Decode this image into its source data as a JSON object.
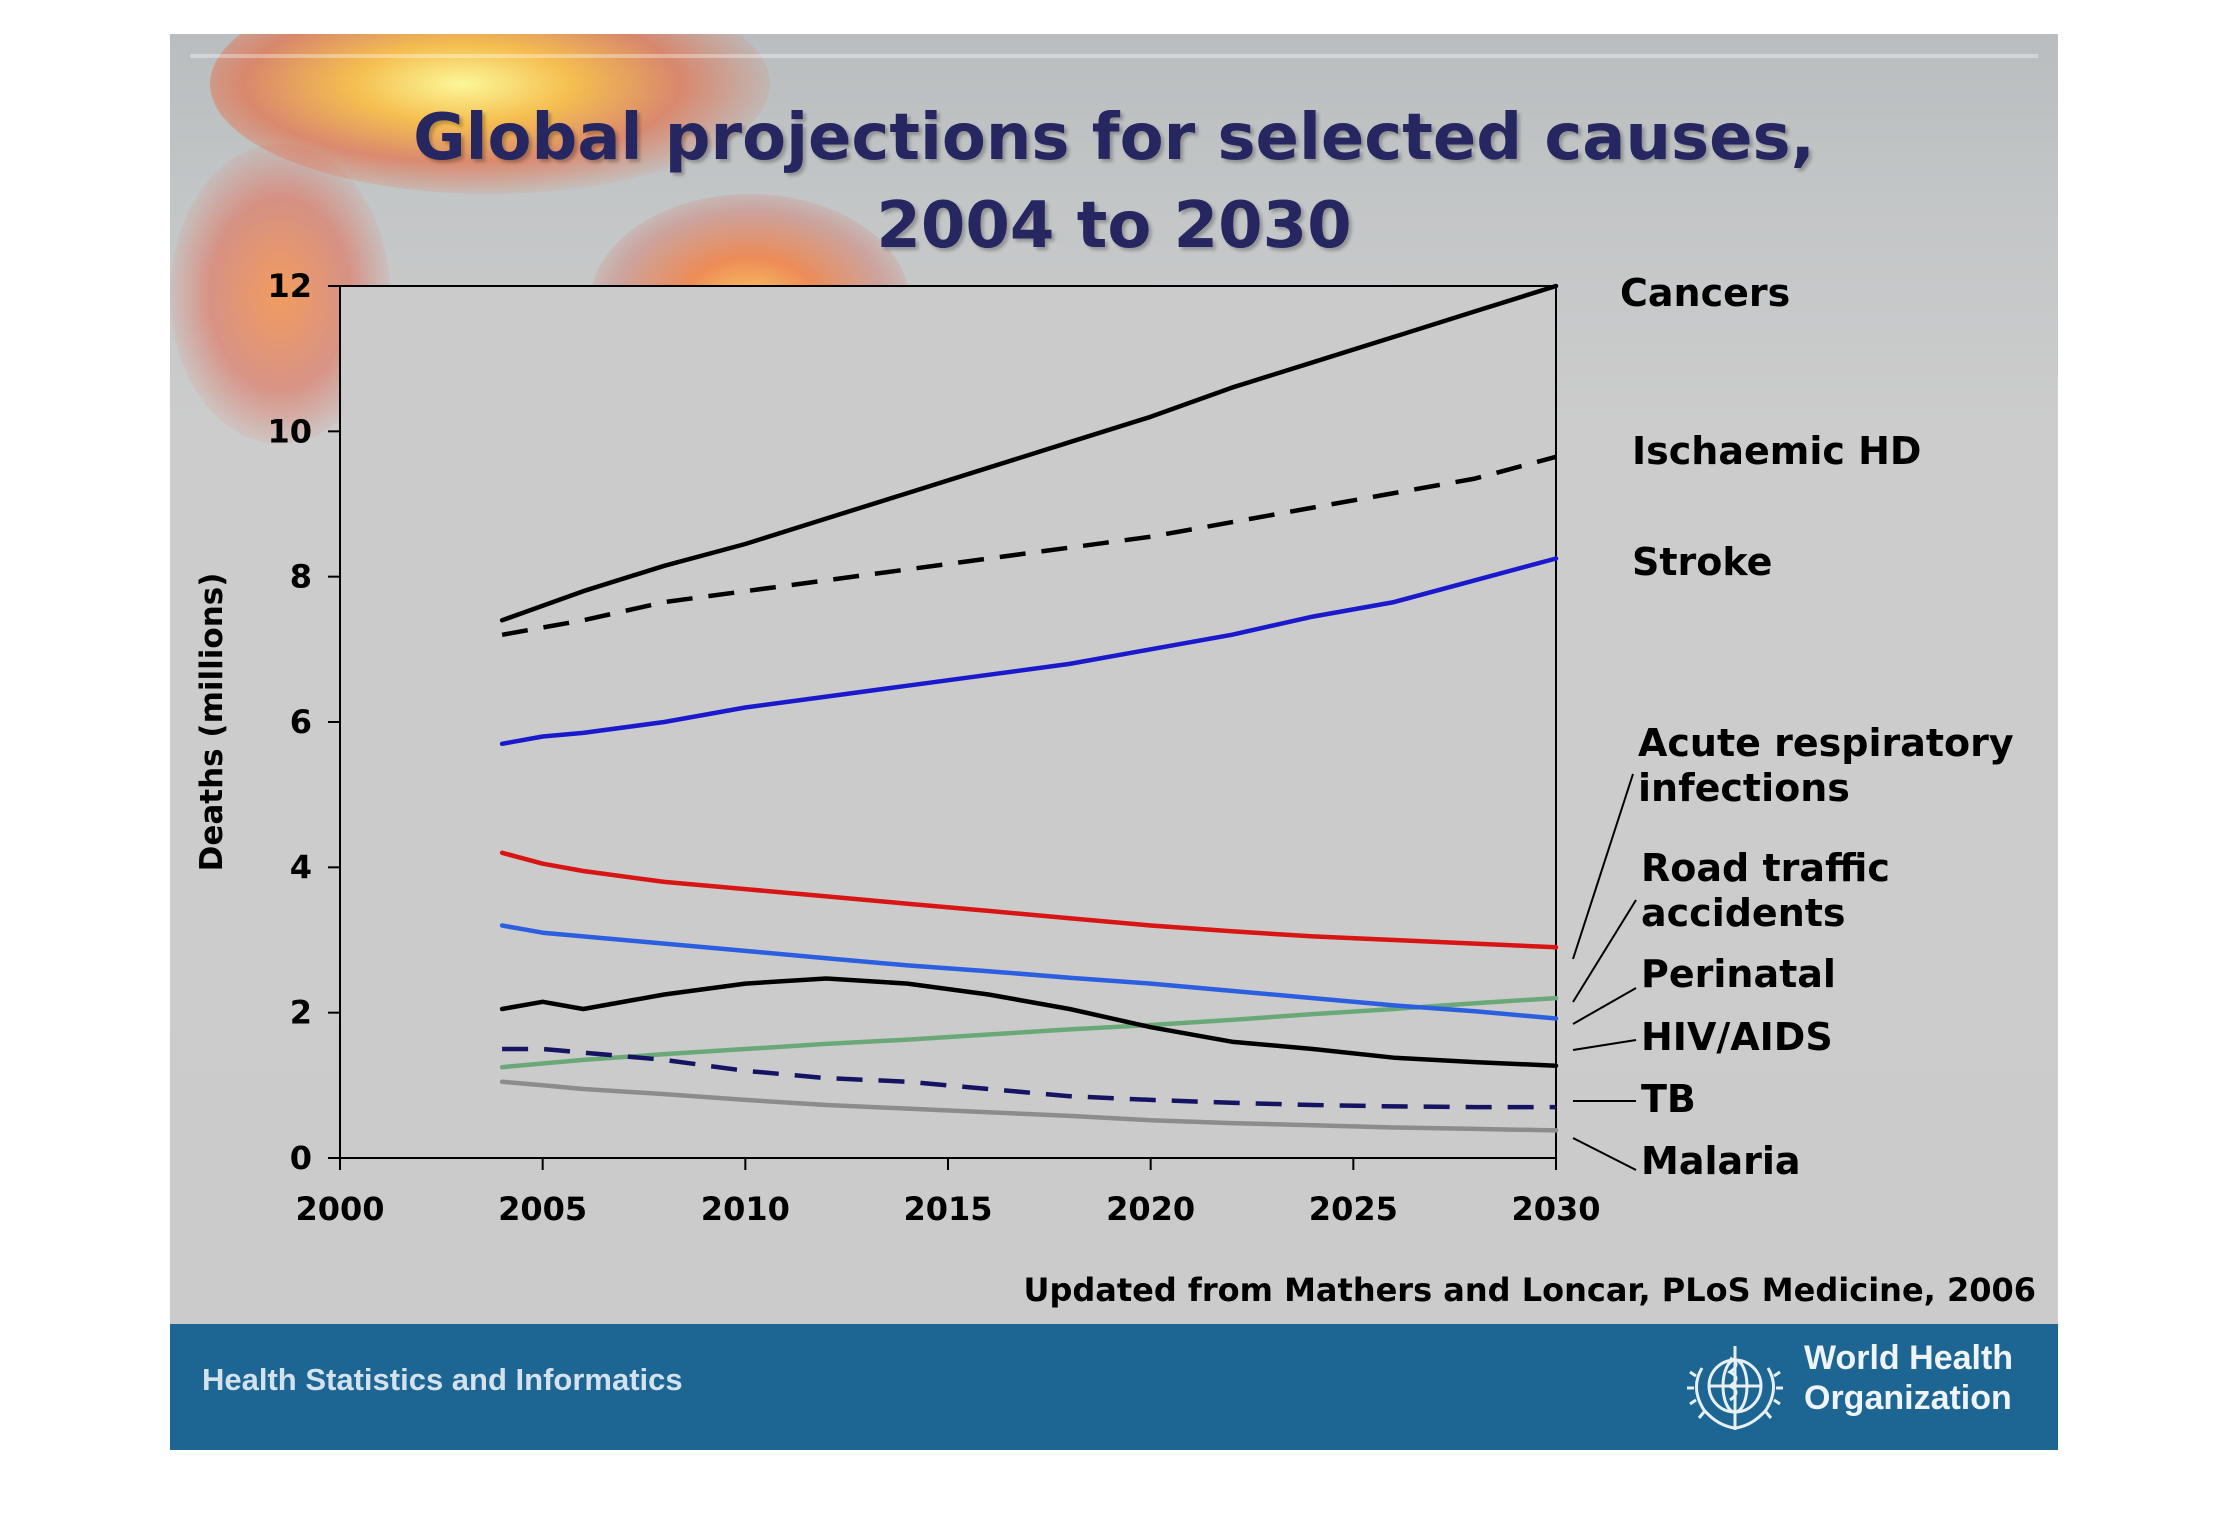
{
  "slide": {
    "title_line1": "Global projections for selected causes,",
    "title_line2": "2004 to 2030",
    "source": "Updated from Mathers and Loncar, PLoS Medicine, 2006",
    "footer_text": "Health Statistics and Informatics",
    "org_name_line1": "World Health",
    "org_name_line2": "Organization",
    "footer_color": "#1d6592",
    "title_color": "#262660"
  },
  "chart_data": {
    "type": "line",
    "title": "",
    "xlabel": "",
    "ylabel": "Deaths (millions)",
    "xlim": [
      2000,
      2030
    ],
    "ylim": [
      0,
      12
    ],
    "x_ticks": [
      2000,
      2005,
      2010,
      2015,
      2020,
      2025,
      2030
    ],
    "y_ticks": [
      0,
      2,
      4,
      6,
      8,
      10,
      12
    ],
    "grid": false,
    "legend": "direct labels at right",
    "x": [
      2004,
      2005,
      2006,
      2008,
      2010,
      2012,
      2014,
      2016,
      2018,
      2020,
      2022,
      2024,
      2026,
      2028,
      2030
    ],
    "series": [
      {
        "name": "Cancers",
        "color": "#000000",
        "dash": "solid",
        "values": [
          7.4,
          7.6,
          7.8,
          8.15,
          8.45,
          8.8,
          9.15,
          9.5,
          9.85,
          10.2,
          10.6,
          10.95,
          11.3,
          11.65,
          12.0
        ]
      },
      {
        "name": "Ischaemic HD",
        "color": "#000000",
        "dash": "dashed",
        "values": [
          7.2,
          7.3,
          7.4,
          7.65,
          7.8,
          7.95,
          8.1,
          8.25,
          8.4,
          8.55,
          8.75,
          8.95,
          9.15,
          9.35,
          9.65
        ]
      },
      {
        "name": "Stroke",
        "color": "#1a1acc",
        "dash": "solid",
        "values": [
          5.7,
          5.8,
          5.85,
          6.0,
          6.2,
          6.35,
          6.5,
          6.65,
          6.8,
          7.0,
          7.2,
          7.45,
          7.65,
          7.95,
          8.25
        ]
      },
      {
        "name": "Acute respiratory infections",
        "color": "#d81414",
        "dash": "solid",
        "values": [
          4.2,
          4.05,
          3.95,
          3.8,
          3.7,
          3.6,
          3.5,
          3.4,
          3.3,
          3.2,
          3.12,
          3.05,
          3.0,
          2.95,
          2.9
        ]
      },
      {
        "name": "Road traffic accidents",
        "color": "#6aa878",
        "dash": "solid",
        "values": [
          1.25,
          1.3,
          1.35,
          1.43,
          1.5,
          1.57,
          1.63,
          1.7,
          1.77,
          1.83,
          1.9,
          1.98,
          2.05,
          2.13,
          2.2
        ]
      },
      {
        "name": "Perinatal",
        "color": "#2b5fe0",
        "dash": "solid",
        "values": [
          3.2,
          3.1,
          3.05,
          2.95,
          2.85,
          2.75,
          2.65,
          2.57,
          2.48,
          2.4,
          2.3,
          2.2,
          2.1,
          2.02,
          1.92
        ]
      },
      {
        "name": "HIV/AIDS",
        "color": "#000000",
        "dash": "solid",
        "values": [
          2.05,
          2.15,
          2.05,
          2.25,
          2.4,
          2.47,
          2.4,
          2.25,
          2.05,
          1.8,
          1.6,
          1.5,
          1.38,
          1.32,
          1.27
        ]
      },
      {
        "name": "TB",
        "color": "#141462",
        "dash": "dashed",
        "values": [
          1.5,
          1.5,
          1.45,
          1.35,
          1.2,
          1.1,
          1.05,
          0.95,
          0.85,
          0.8,
          0.76,
          0.73,
          0.71,
          0.7,
          0.7
        ]
      },
      {
        "name": "Malaria",
        "color": "#8c8c8c",
        "dash": "solid",
        "values": [
          1.05,
          1.0,
          0.95,
          0.88,
          0.8,
          0.73,
          0.68,
          0.63,
          0.58,
          0.52,
          0.48,
          0.45,
          0.42,
          0.4,
          0.38
        ]
      }
    ]
  }
}
